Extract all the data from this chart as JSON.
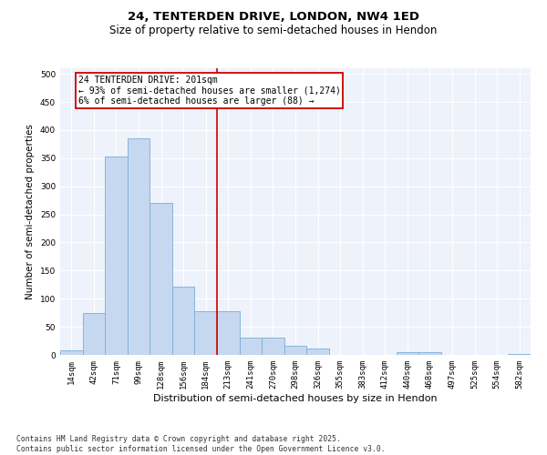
{
  "title": "24, TENTERDEN DRIVE, LONDON, NW4 1ED",
  "subtitle": "Size of property relative to semi-detached houses in Hendon",
  "xlabel": "Distribution of semi-detached houses by size in Hendon",
  "ylabel": "Number of semi-detached properties",
  "categories": [
    "14sqm",
    "42sqm",
    "71sqm",
    "99sqm",
    "128sqm",
    "156sqm",
    "184sqm",
    "213sqm",
    "241sqm",
    "270sqm",
    "298sqm",
    "326sqm",
    "355sqm",
    "383sqm",
    "412sqm",
    "440sqm",
    "468sqm",
    "497sqm",
    "525sqm",
    "554sqm",
    "582sqm"
  ],
  "values": [
    8,
    75,
    353,
    385,
    270,
    122,
    78,
    78,
    30,
    30,
    17,
    11,
    0,
    0,
    0,
    5,
    5,
    0,
    0,
    0,
    2
  ],
  "bar_color": "#c5d8f0",
  "bar_edge_color": "#7aaed6",
  "vline_color": "#cc0000",
  "annotation_text": "24 TENTERDEN DRIVE: 201sqm\n← 93% of semi-detached houses are smaller (1,274)\n6% of semi-detached houses are larger (88) →",
  "annotation_box_color": "#cc0000",
  "ylim": [
    0,
    510
  ],
  "yticks": [
    0,
    50,
    100,
    150,
    200,
    250,
    300,
    350,
    400,
    450,
    500
  ],
  "background_color": "#eef2fb",
  "grid_color": "#ffffff",
  "footer": "Contains HM Land Registry data © Crown copyright and database right 2025.\nContains public sector information licensed under the Open Government Licence v3.0.",
  "title_fontsize": 9.5,
  "subtitle_fontsize": 8.5,
  "xlabel_fontsize": 8,
  "ylabel_fontsize": 7.5,
  "tick_fontsize": 6.5,
  "annotation_fontsize": 7,
  "footer_fontsize": 5.8
}
